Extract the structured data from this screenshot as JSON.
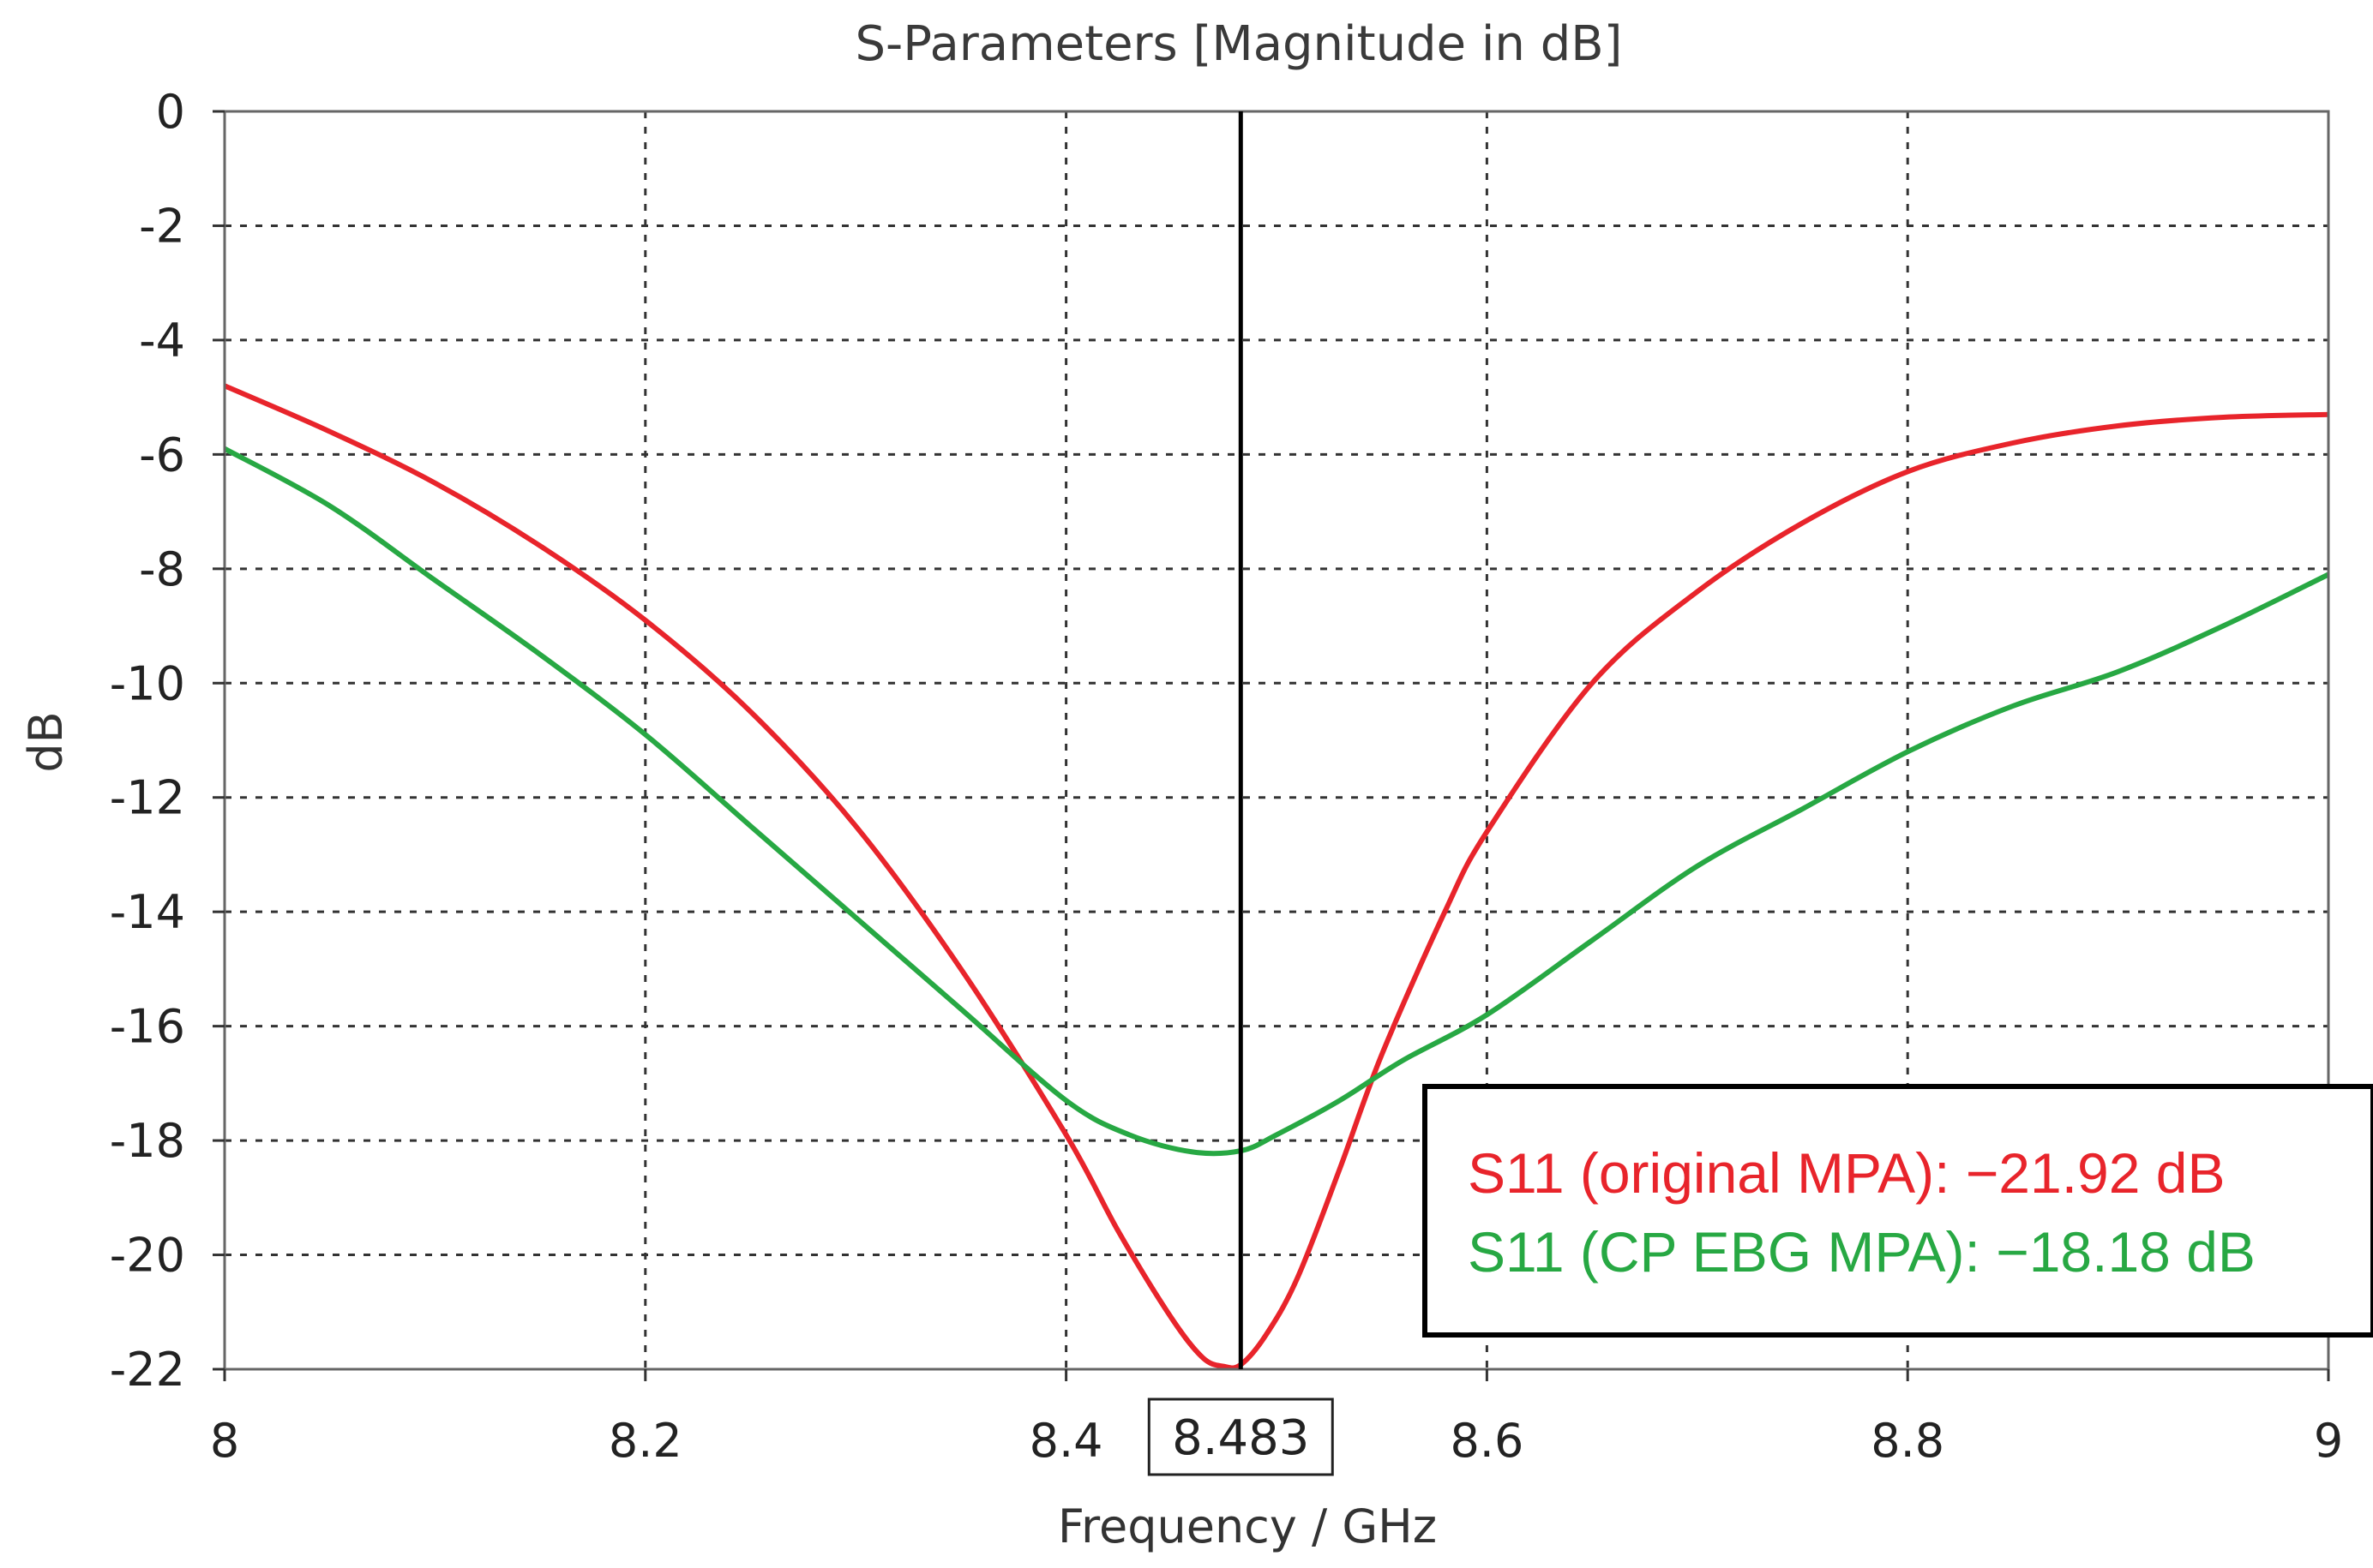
{
  "chart_data": {
    "type": "line",
    "title": "S-Parameters [Magnitude in dB]",
    "xlabel": "Frequency / GHz",
    "ylabel": "dB",
    "xlim": [
      8,
      9
    ],
    "ylim": [
      -22,
      0
    ],
    "xticks": [
      8,
      8.2,
      8.4,
      8.6,
      8.8,
      9
    ],
    "xtick_labels": [
      "8",
      "8.2",
      "8.4",
      "8.6",
      "8.8",
      "9"
    ],
    "yticks": [
      0,
      -2,
      -4,
      -6,
      -8,
      -10,
      -12,
      -14,
      -16,
      -18,
      -20,
      -22
    ],
    "ytick_labels": [
      "0",
      "-2",
      "-4",
      "-6",
      "-8",
      "-10",
      "-12",
      "-14",
      "-16",
      "-18",
      "-20",
      "-22"
    ],
    "grid": true,
    "marker": {
      "x": 8.483,
      "label": "8.483"
    },
    "series": [
      {
        "name": "S11 (original MPA)",
        "color": "#e8242b",
        "x": [
          8.0,
          8.05,
          8.1,
          8.15,
          8.2,
          8.25,
          8.3,
          8.35,
          8.4,
          8.425,
          8.45,
          8.465,
          8.475,
          8.483,
          8.495,
          8.51,
          8.53,
          8.55,
          8.58,
          8.6,
          8.65,
          8.7,
          8.75,
          8.8,
          8.85,
          8.9,
          8.95,
          9.0
        ],
        "y": [
          -4.8,
          -5.6,
          -6.5,
          -7.6,
          -8.9,
          -10.5,
          -12.5,
          -15.0,
          -17.9,
          -19.6,
          -21.1,
          -21.8,
          -21.95,
          -21.92,
          -21.4,
          -20.4,
          -18.5,
          -16.5,
          -14.0,
          -12.6,
          -10.0,
          -8.4,
          -7.2,
          -6.3,
          -5.8,
          -5.5,
          -5.35,
          -5.3
        ]
      },
      {
        "name": "S11 (CP EBG MPA)",
        "color": "#27a843",
        "x": [
          8.0,
          8.05,
          8.1,
          8.15,
          8.2,
          8.25,
          8.3,
          8.35,
          8.4,
          8.43,
          8.46,
          8.483,
          8.5,
          8.53,
          8.56,
          8.6,
          8.65,
          8.7,
          8.75,
          8.8,
          8.85,
          8.9,
          8.95,
          9.0
        ],
        "y": [
          -5.9,
          -6.9,
          -8.2,
          -9.5,
          -10.9,
          -12.5,
          -14.1,
          -15.7,
          -17.3,
          -17.9,
          -18.2,
          -18.18,
          -17.9,
          -17.3,
          -16.6,
          -15.8,
          -14.5,
          -13.2,
          -12.2,
          -11.2,
          -10.4,
          -9.8,
          -9.0,
          -8.1
        ]
      }
    ],
    "legend": [
      {
        "text": "S11 (original MPA): −21.92 dB",
        "color": "#e8242b"
      },
      {
        "text": "S11 (CP EBG MPA): −18.18 dB",
        "color": "#27a843"
      }
    ]
  }
}
